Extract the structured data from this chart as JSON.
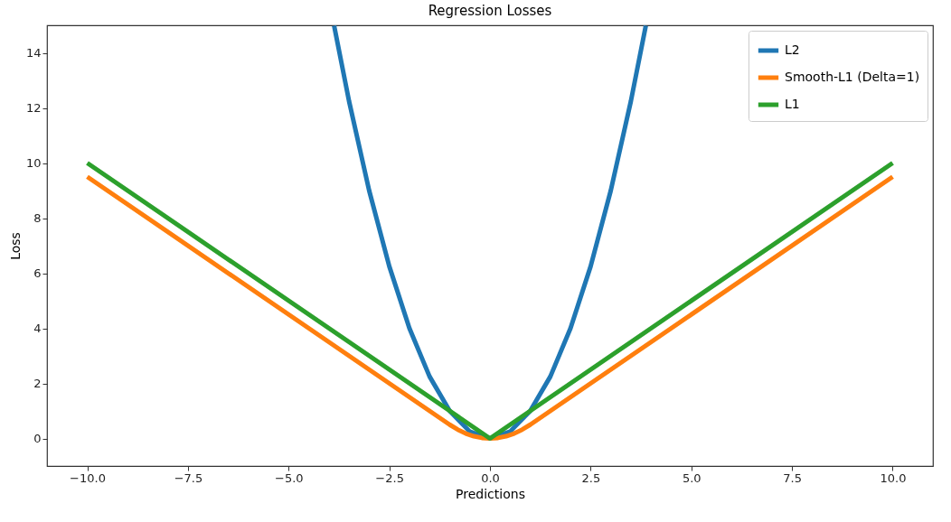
{
  "chart_data": {
    "type": "line",
    "title": "Regression Losses",
    "xlabel": "Predictions",
    "ylabel": "Loss",
    "xlim": [
      -11,
      11
    ],
    "ylim": [
      -1,
      15
    ],
    "xticks": [
      {
        "value": -10,
        "label": "−10.0"
      },
      {
        "value": -7.5,
        "label": "−7.5"
      },
      {
        "value": -5,
        "label": "−5.0"
      },
      {
        "value": -2.5,
        "label": "−2.5"
      },
      {
        "value": 0,
        "label": "0.0"
      },
      {
        "value": 2.5,
        "label": "2.5"
      },
      {
        "value": 5,
        "label": "5.0"
      },
      {
        "value": 7.5,
        "label": "7.5"
      },
      {
        "value": 10,
        "label": "10.0"
      }
    ],
    "yticks": [
      0,
      2,
      4,
      6,
      8,
      10,
      12,
      14
    ],
    "grid": false,
    "legend": "top right",
    "marker": "none",
    "line_style": "solid",
    "series": [
      {
        "name": "L2",
        "color": "#1f77b4",
        "x": [
          -3.87,
          -3.5,
          -3,
          -2.5,
          -2,
          -1.5,
          -1,
          -0.5,
          0,
          0.5,
          1,
          1.5,
          2,
          2.5,
          3,
          3.5,
          3.87
        ],
        "values": [
          14.98,
          12.25,
          9,
          6.25,
          4,
          2.25,
          1,
          0.25,
          0,
          0.25,
          1,
          2.25,
          4,
          6.25,
          9,
          12.25,
          14.98
        ]
      },
      {
        "name": "Smooth-L1 (Delta=1)",
        "color": "#ff7f0e",
        "x": [
          -10,
          -1,
          -0.8,
          -0.6,
          -0.4,
          -0.2,
          0,
          0.2,
          0.4,
          0.6,
          0.8,
          1,
          10
        ],
        "values": [
          9.5,
          0.5,
          0.32,
          0.18,
          0.08,
          0.02,
          0,
          0.02,
          0.08,
          0.18,
          0.32,
          0.5,
          9.5
        ]
      },
      {
        "name": "L1",
        "color": "#2ca02c",
        "x": [
          -10,
          0,
          10
        ],
        "values": [
          10,
          0,
          10
        ]
      }
    ]
  }
}
